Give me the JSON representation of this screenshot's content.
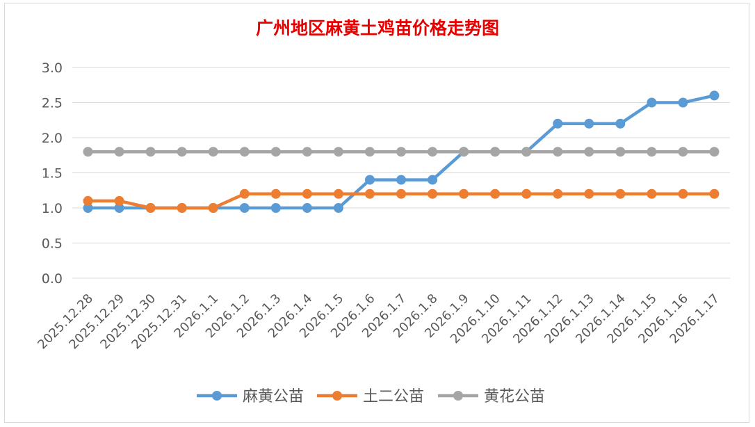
{
  "chart_data": {
    "type": "line",
    "title": "广州地区麻黄土鸡苗价格走势图",
    "title_color": "#e60000",
    "categories": [
      "2025.12.28",
      "2025.12.29",
      "2025.12.30",
      "2025.12.31",
      "2026.1.1",
      "2026.1.2",
      "2026.1.3",
      "2026.1.4",
      "2026.1.5",
      "2026.1.6",
      "2026.1.7",
      "2026.1.8",
      "2026.1.9",
      "2026.1.10",
      "2026.1.11",
      "2026.1.12",
      "2026.1.13",
      "2026.1.14",
      "2026.1.15",
      "2026.1.16",
      "2026.1.17"
    ],
    "series": [
      {
        "name": "麻黄公苗",
        "color": "#5b9bd5",
        "values": [
          1.0,
          1.0,
          1.0,
          1.0,
          1.0,
          1.0,
          1.0,
          1.0,
          1.0,
          1.4,
          1.4,
          1.4,
          1.8,
          1.8,
          1.8,
          2.2,
          2.2,
          2.2,
          2.5,
          2.5,
          2.6
        ]
      },
      {
        "name": "土二公苗",
        "color": "#ed7d31",
        "values": [
          1.1,
          1.1,
          1.0,
          1.0,
          1.0,
          1.2,
          1.2,
          1.2,
          1.2,
          1.2,
          1.2,
          1.2,
          1.2,
          1.2,
          1.2,
          1.2,
          1.2,
          1.2,
          1.2,
          1.2,
          1.2
        ]
      },
      {
        "name": "黄花公苗",
        "color": "#a5a5a5",
        "values": [
          1.8,
          1.8,
          1.8,
          1.8,
          1.8,
          1.8,
          1.8,
          1.8,
          1.8,
          1.8,
          1.8,
          1.8,
          1.8,
          1.8,
          1.8,
          1.8,
          1.8,
          1.8,
          1.8,
          1.8,
          1.8
        ]
      }
    ],
    "y_ticks": [
      "0.0",
      "0.5",
      "1.0",
      "1.5",
      "2.0",
      "2.5",
      "3.0"
    ],
    "ylim": [
      0,
      3.0
    ],
    "xlabel": "",
    "ylabel": "",
    "grid": true,
    "legend_position": "bottom"
  }
}
